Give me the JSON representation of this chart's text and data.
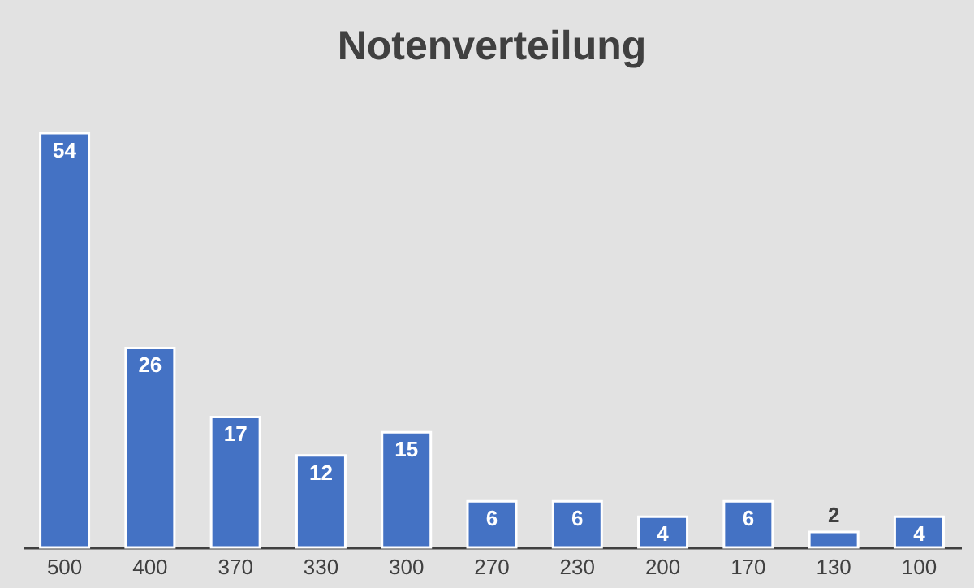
{
  "chart_data": {
    "type": "bar",
    "title": "Notenverteilung",
    "categories": [
      "500",
      "400",
      "370",
      "330",
      "300",
      "270",
      "230",
      "200",
      "170",
      "130",
      "100"
    ],
    "values": [
      54,
      26,
      17,
      12,
      15,
      6,
      6,
      4,
      6,
      2,
      4
    ],
    "color": "#4472c4",
    "data_labels": true
  }
}
